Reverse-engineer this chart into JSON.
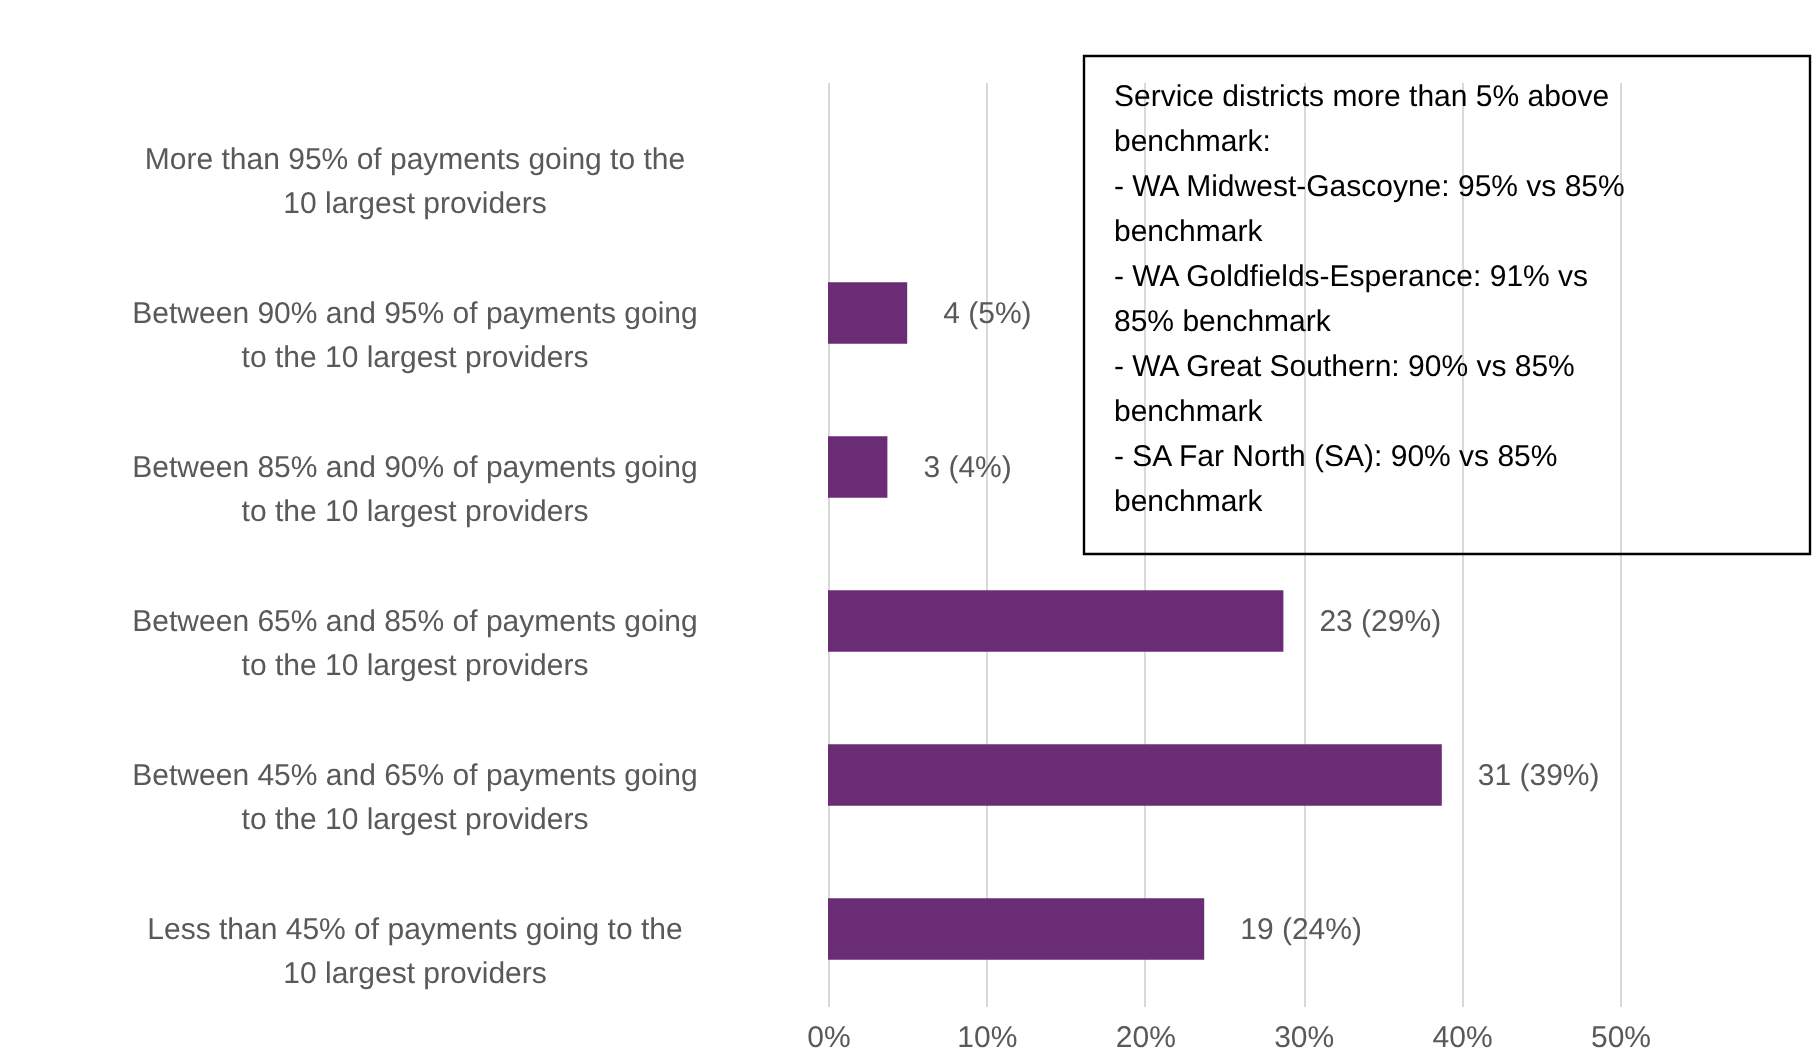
{
  "chart_data": {
    "type": "bar",
    "orientation": "horizontal",
    "categories": [
      "More than 95% of payments going to the 10 largest providers",
      "Between 90% and 95% of payments going to the 10 largest providers",
      "Between 85% and 90% of payments going to the 10 largest providers",
      "Between 65% and 85% of payments going to the 10 largest providers",
      "Between 45% and 65% of payments going to the 10 largest providers",
      "Less than 45% of payments going to the 10 largest providers"
    ],
    "series": [
      {
        "color": "#6a2c75",
        "values": [
          0,
          5,
          3.75,
          28.75,
          38.75,
          23.75
        ],
        "value_labels": [
          null,
          "4 (5%)",
          "3 (4%)",
          "23 (29%)",
          "31 (39%)",
          "19 (24%)"
        ]
      }
    ],
    "xlim": [
      0,
      50
    ],
    "xticks": [
      {
        "value": 0,
        "label": "0%"
      },
      {
        "value": 10,
        "label": "10%"
      },
      {
        "value": 20,
        "label": "20%"
      },
      {
        "value": 30,
        "label": "30%"
      },
      {
        "value": 40,
        "label": "40%"
      },
      {
        "value": 50,
        "label": "50%"
      }
    ],
    "grid": "x",
    "annotations": [
      "Service districts more than 5% above benchmark:\n - WA Midwest-Gascoyne: 95% vs 85% benchmark\n - WA Goldfields-Esperance: 91% vs 85% benchmark\n - WA Great Southern: 90% vs 85% benchmark\n - SA Far North (SA): 90% vs 85% benchmark"
    ]
  }
}
